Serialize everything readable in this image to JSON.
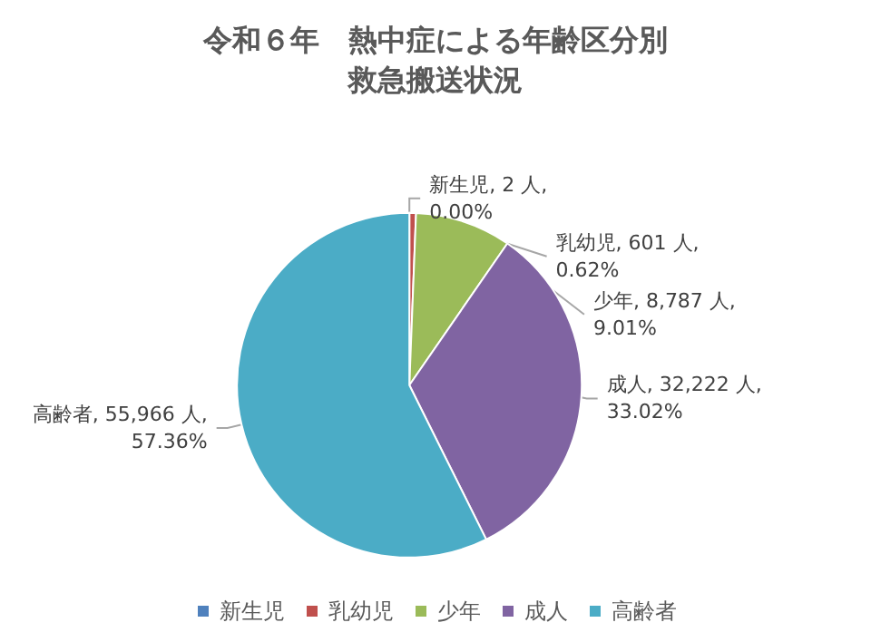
{
  "chart_data": {
    "type": "pie",
    "title": "令和６年　熱中症による年齢区分別救急搬送状況",
    "categories": [
      "新生児",
      "乳幼児",
      "少年",
      "成人",
      "高齢者"
    ],
    "values": [
      2,
      601,
      8787,
      32222,
      55966
    ],
    "value_labels": [
      "新生児, 2 人, 0.00%",
      "乳幼児, 601 人, 0.62%",
      "少年, 8,787 人, 9.01%",
      "成人, 32,222 人, 33.02%",
      "高齢者, 55,966 人, 57.36%"
    ],
    "colors": [
      "#4f81bd",
      "#c0504d",
      "#9bbb59",
      "#8064a2",
      "#4bacc6"
    ],
    "legend": "bottom"
  }
}
